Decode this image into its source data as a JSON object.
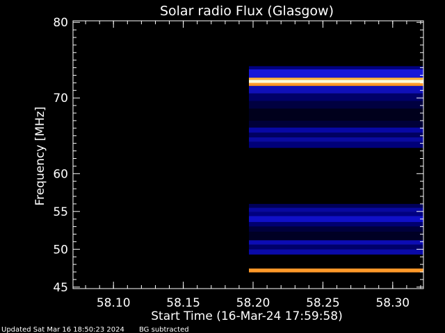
{
  "chart_data": {
    "type": "heatmap",
    "title": "Solar radio Flux (Glasgow)",
    "xlabel": "Start Time (16-Mar-24 17:59:58)",
    "ylabel": "Frequency [MHz]",
    "xlim": [
      58.071,
      58.322
    ],
    "ylim": [
      80.2,
      44.8
    ],
    "x_ticks": [
      "58.10",
      "58.15",
      "58.20",
      "58.25",
      "58.30"
    ],
    "x_tick_values": [
      58.1,
      58.15,
      58.2,
      58.25,
      58.3
    ],
    "y_ticks": [
      "45",
      "50",
      "55",
      "60",
      "70",
      "80"
    ],
    "y_tick_values": [
      45,
      50,
      55,
      60,
      70,
      80
    ],
    "data_start_x": 58.197,
    "background_color": "#000000",
    "bands": [
      {
        "f_start": 46.95,
        "f_end": 47.45,
        "color": "#ff9a2a"
      },
      {
        "f_start": 49.3,
        "f_end": 50.0,
        "color": "#0a0aa8"
      },
      {
        "f_start": 50.0,
        "f_end": 50.6,
        "color": "#00006a"
      },
      {
        "f_start": 50.6,
        "f_end": 51.2,
        "color": "#0c0cb4"
      },
      {
        "f_start": 51.2,
        "f_end": 52.3,
        "color": "#000024"
      },
      {
        "f_start": 52.3,
        "f_end": 53.0,
        "color": "#00003c"
      },
      {
        "f_start": 53.0,
        "f_end": 53.6,
        "color": "#000070"
      },
      {
        "f_start": 53.6,
        "f_end": 54.4,
        "color": "#1010c8"
      },
      {
        "f_start": 54.4,
        "f_end": 54.9,
        "color": "#000080"
      },
      {
        "f_start": 54.9,
        "f_end": 55.5,
        "color": "#0808a0"
      },
      {
        "f_start": 55.5,
        "f_end": 56.0,
        "color": "#000058"
      },
      {
        "f_start": 63.4,
        "f_end": 64.2,
        "color": "#000078"
      },
      {
        "f_start": 64.2,
        "f_end": 64.8,
        "color": "#0a0aa0"
      },
      {
        "f_start": 64.8,
        "f_end": 65.4,
        "color": "#000060"
      },
      {
        "f_start": 65.4,
        "f_end": 66.1,
        "color": "#0808a4"
      },
      {
        "f_start": 66.1,
        "f_end": 67.0,
        "color": "#000038"
      },
      {
        "f_start": 67.0,
        "f_end": 68.6,
        "color": "#00001c"
      },
      {
        "f_start": 68.6,
        "f_end": 69.6,
        "color": "#000040"
      },
      {
        "f_start": 69.6,
        "f_end": 70.6,
        "color": "#000068"
      },
      {
        "f_start": 70.6,
        "f_end": 71.6,
        "color": "#1010b8"
      },
      {
        "f_start": 71.6,
        "f_end": 72.0,
        "color": "#ff9a2a"
      },
      {
        "f_start": 72.0,
        "f_end": 72.4,
        "color": "#ffffd8"
      },
      {
        "f_start": 72.4,
        "f_end": 72.7,
        "color": "#ffb040"
      },
      {
        "f_start": 72.7,
        "f_end": 73.8,
        "color": "#1818d8"
      },
      {
        "f_start": 73.8,
        "f_end": 74.2,
        "color": "#000080"
      }
    ]
  },
  "footer": {
    "updated": "Updated Sat Mar 16 18:50:23 2024",
    "bg_note": "BG subtracted"
  }
}
